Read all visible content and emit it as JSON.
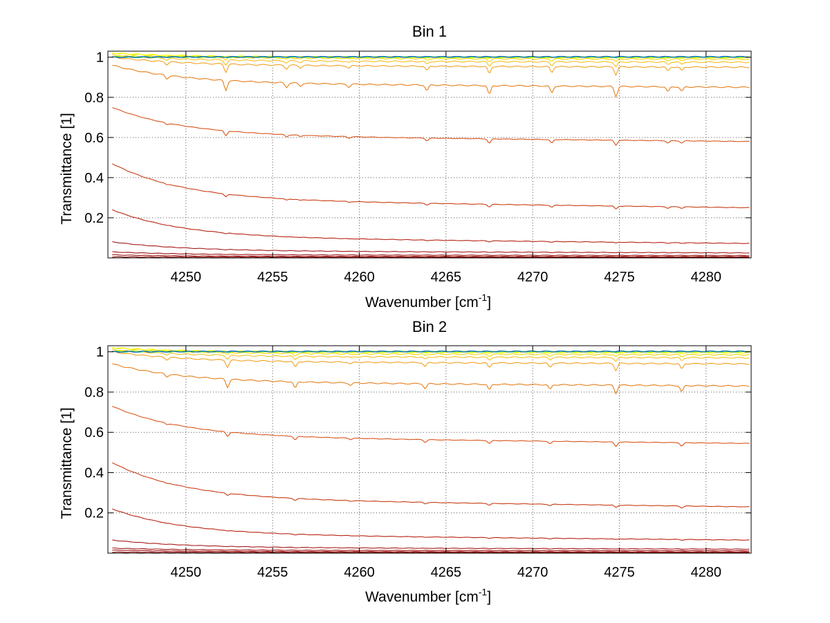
{
  "chart_data": [
    {
      "type": "line",
      "title": "Bin 1",
      "xlabel": "Wavenumber [cm",
      "xlabel_sup": "-1",
      "xlabel_end": "]",
      "ylabel": "Transmittance [1]",
      "xlim": [
        4245.5,
        4282.6
      ],
      "ylim": [
        0,
        1.03
      ],
      "xticks": [
        4250,
        4255,
        4260,
        4265,
        4270,
        4275,
        4280
      ],
      "yticks": [
        0.2,
        0.4,
        0.6,
        0.8,
        1
      ],
      "grid": true,
      "absorption_lines": [
        {
          "x": 4248.9,
          "rel": 0.35
        },
        {
          "x": 4252.3,
          "rel": 1.0
        },
        {
          "x": 4255.8,
          "rel": 0.45
        },
        {
          "x": 4256.6,
          "rel": 0.3
        },
        {
          "x": 4259.4,
          "rel": 0.3
        },
        {
          "x": 4263.9,
          "rel": 0.55
        },
        {
          "x": 4267.5,
          "rel": 0.9
        },
        {
          "x": 4271.1,
          "rel": 0.7
        },
        {
          "x": 4274.8,
          "rel": 1.0
        },
        {
          "x": 4277.8,
          "rel": 0.5
        },
        {
          "x": 4278.6,
          "rel": 0.45
        }
      ],
      "series": [
        {
          "color": "#8B0000",
          "y_start": 0.005,
          "y_end": 0.003,
          "depth": 0.0
        },
        {
          "color": "#9A0A0A",
          "y_start": 0.015,
          "y_end": 0.006,
          "depth": 0.0
        },
        {
          "color": "#A01010",
          "y_start": 0.03,
          "y_end": 0.012,
          "depth": 0.0
        },
        {
          "color": "#A51818",
          "y_start": 0.08,
          "y_end": 0.025,
          "depth": 0.002
        },
        {
          "color": "#B82010",
          "y_start": 0.24,
          "y_end": 0.072,
          "depth": 0.005
        },
        {
          "color": "#C83A10",
          "y_start": 0.47,
          "y_end": 0.25,
          "depth": 0.015
        },
        {
          "color": "#D8541A",
          "y_start": 0.75,
          "y_end": 0.58,
          "depth": 0.025
        },
        {
          "color": "#E67E1A",
          "y_start": 0.96,
          "y_end": 0.85,
          "depth": 0.05
        },
        {
          "color": "#F0A020",
          "y_start": 1.0,
          "y_end": 0.95,
          "depth": 0.04
        },
        {
          "color": "#F5C020",
          "y_start": 1.01,
          "y_end": 0.975,
          "depth": 0.025
        },
        {
          "color": "#F2D900",
          "y_start": 1.02,
          "y_end": 0.99,
          "depth": 0.015
        },
        {
          "color": "#FFFF00",
          "y_start": 1.02,
          "y_end": 0.998,
          "depth": 0.005
        },
        {
          "color": "#C8E600",
          "y_start": 1.005,
          "y_end": 1.0,
          "depth": 0.003
        },
        {
          "color": "#8EE83A",
          "y_start": 1.0,
          "y_end": 1.0,
          "depth": 0.002
        },
        {
          "color": "#00B0B0",
          "y_start": 1.0,
          "y_end": 1.002,
          "depth": 0.001
        },
        {
          "color": "#1060C0",
          "y_start": 1.0,
          "y_end": 1.002,
          "depth": 0.0
        }
      ]
    },
    {
      "type": "line",
      "title": "Bin 2",
      "xlabel": "Wavenumber [cm",
      "xlabel_sup": "-1",
      "xlabel_end": "]",
      "ylabel": "Transmittance [1]",
      "xlim": [
        4245.5,
        4282.6
      ],
      "ylim": [
        0,
        1.03
      ],
      "xticks": [
        4250,
        4255,
        4260,
        4265,
        4270,
        4275,
        4280
      ],
      "yticks": [
        0.2,
        0.4,
        0.6,
        0.8,
        1
      ],
      "grid": true,
      "absorption_lines": [
        {
          "x": 4248.9,
          "rel": 0.35
        },
        {
          "x": 4252.4,
          "rel": 1.0
        },
        {
          "x": 4256.3,
          "rel": 0.8
        },
        {
          "x": 4259.5,
          "rel": 0.3
        },
        {
          "x": 4263.8,
          "rel": 0.6
        },
        {
          "x": 4267.5,
          "rel": 0.7
        },
        {
          "x": 4271.0,
          "rel": 0.6
        },
        {
          "x": 4274.8,
          "rel": 1.0
        },
        {
          "x": 4278.6,
          "rel": 0.8
        }
      ],
      "series": [
        {
          "color": "#8B0000",
          "y_start": 0.005,
          "y_end": 0.003,
          "depth": 0.0
        },
        {
          "color": "#9A0A0A",
          "y_start": 0.015,
          "y_end": 0.006,
          "depth": 0.0
        },
        {
          "color": "#A01010",
          "y_start": 0.025,
          "y_end": 0.012,
          "depth": 0.0
        },
        {
          "color": "#A51818",
          "y_start": 0.065,
          "y_end": 0.02,
          "depth": 0.002
        },
        {
          "color": "#B82010",
          "y_start": 0.22,
          "y_end": 0.065,
          "depth": 0.004
        },
        {
          "color": "#C83A10",
          "y_start": 0.45,
          "y_end": 0.23,
          "depth": 0.012
        },
        {
          "color": "#D8541A",
          "y_start": 0.73,
          "y_end": 0.545,
          "depth": 0.022
        },
        {
          "color": "#E67E1A",
          "y_start": 0.94,
          "y_end": 0.83,
          "depth": 0.04
        },
        {
          "color": "#F0A020",
          "y_start": 1.0,
          "y_end": 0.94,
          "depth": 0.035
        },
        {
          "color": "#F5C020",
          "y_start": 1.01,
          "y_end": 0.97,
          "depth": 0.02
        },
        {
          "color": "#F2D900",
          "y_start": 1.02,
          "y_end": 0.985,
          "depth": 0.012
        },
        {
          "color": "#FFFF00",
          "y_start": 1.02,
          "y_end": 0.995,
          "depth": 0.005
        },
        {
          "color": "#C8E600",
          "y_start": 1.005,
          "y_end": 1.0,
          "depth": 0.003
        },
        {
          "color": "#8EE83A",
          "y_start": 1.0,
          "y_end": 1.0,
          "depth": 0.002
        },
        {
          "color": "#00B0B0",
          "y_start": 1.0,
          "y_end": 1.002,
          "depth": 0.001
        },
        {
          "color": "#1060C0",
          "y_start": 1.0,
          "y_end": 1.002,
          "depth": 0.0
        }
      ]
    }
  ]
}
